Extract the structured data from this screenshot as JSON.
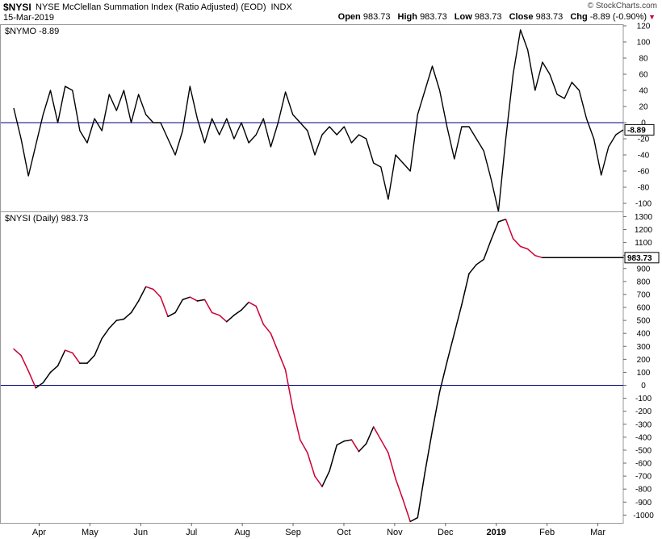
{
  "header": {
    "symbol": "$NYSI",
    "description": "NYSE McClellan Summation Index (Ratio Adjusted) (EOD)",
    "exchange": "INDX",
    "date": "15-Mar-2019",
    "credit": "© StockCharts.com",
    "open_label": "Open",
    "open": "983.73",
    "high_label": "High",
    "high": "983.73",
    "low_label": "Low",
    "low": "983.73",
    "close_label": "Close",
    "close": "983.73",
    "chg_label": "Chg",
    "chg": "-8.89 (-0.90%)",
    "chg_arrow": "▼"
  },
  "colors": {
    "line": "#000000",
    "down": "#cc0033",
    "zero_line": "#000080",
    "grid": "#cccccc"
  },
  "chart_data": [
    {
      "type": "line",
      "title": "$NYMO -8.89",
      "last_value_label": "-8.89",
      "ylim": [
        -110,
        122
      ],
      "yticks": [
        120,
        100,
        80,
        60,
        40,
        20,
        0,
        -20,
        -40,
        -60,
        -80,
        -100
      ],
      "ytick_labels": [
        "120",
        "100",
        "80",
        "60",
        "40",
        "20",
        "0",
        "-20",
        "-40",
        "-60",
        "-80",
        "-100"
      ],
      "reference_line": 0,
      "xtick_labels": [
        "Apr",
        "May",
        "Jun",
        "Jul",
        "Aug",
        "Sep",
        "Oct",
        "Nov",
        "Dec",
        "2019",
        "Feb",
        "Mar"
      ],
      "x": [
        0,
        3,
        6,
        9,
        12,
        15,
        18,
        21,
        24,
        27,
        30,
        33,
        36,
        39,
        42,
        45,
        48,
        51,
        54,
        57,
        60,
        63,
        66,
        69,
        72,
        75,
        78,
        81,
        84,
        87,
        90,
        93,
        96,
        99,
        102,
        105,
        108,
        111,
        114,
        117,
        120,
        123,
        126,
        129,
        132,
        135,
        138,
        141,
        144,
        147,
        150,
        153,
        156,
        159,
        162,
        165,
        168,
        171,
        174,
        177,
        180,
        183,
        186,
        189,
        192,
        195,
        198,
        201,
        204,
        207,
        210,
        213,
        216,
        219,
        222,
        225,
        228,
        231,
        234,
        237,
        240,
        243,
        246,
        249
      ],
      "values": [
        18,
        -20,
        -66,
        -28,
        10,
        40,
        0,
        45,
        40,
        -10,
        -25,
        5,
        -10,
        35,
        15,
        40,
        0,
        35,
        10,
        0,
        0,
        -20,
        -40,
        -10,
        45,
        5,
        -25,
        5,
        -15,
        5,
        -20,
        0,
        -25,
        -15,
        5,
        -30,
        0,
        38,
        10,
        0,
        -10,
        -40,
        -15,
        -5,
        -15,
        -5,
        -25,
        -15,
        -20,
        -50,
        -55,
        -95,
        -40,
        -50,
        -60,
        10,
        40,
        70,
        40,
        -5,
        -45,
        -5,
        -5,
        -20,
        -35,
        -70,
        -110,
        -20,
        60,
        115,
        90,
        40,
        75,
        60,
        35,
        30,
        50,
        40,
        5,
        -20,
        -65,
        -30,
        -15,
        -8.89
      ]
    },
    {
      "type": "line",
      "title": "$NYSI (Daily) 983.73",
      "last_value_label": "983.73",
      "ylim": [
        -1060,
        1340
      ],
      "yticks": [
        1300,
        1200,
        1100,
        1000,
        900,
        800,
        700,
        600,
        500,
        400,
        300,
        200,
        100,
        0,
        -100,
        -200,
        -300,
        -400,
        -500,
        -600,
        -700,
        -800,
        -900,
        -1000
      ],
      "ytick_labels": [
        "1300",
        "1200",
        "1100",
        "1000",
        "900",
        "800",
        "700",
        "600",
        "500",
        "400",
        "300",
        "200",
        "100",
        "0",
        "-100",
        "-200",
        "-300",
        "-400",
        "-500",
        "-600",
        "-700",
        "-800",
        "-900",
        "-1000"
      ],
      "reference_line": 0,
      "xtick_labels": [
        "Apr",
        "May",
        "Jun",
        "Jul",
        "Aug",
        "Sep",
        "Oct",
        "Nov",
        "Dec",
        "2019",
        "Feb",
        "Mar"
      ],
      "x": [
        0,
        3,
        6,
        9,
        12,
        15,
        18,
        21,
        24,
        27,
        30,
        33,
        36,
        39,
        42,
        45,
        48,
        51,
        54,
        57,
        60,
        63,
        66,
        69,
        72,
        75,
        78,
        81,
        84,
        87,
        90,
        93,
        96,
        99,
        102,
        105,
        108,
        111,
        114,
        117,
        120,
        123,
        126,
        129,
        132,
        135,
        138,
        141,
        144,
        147,
        150,
        153,
        156,
        159,
        162,
        165,
        168,
        171,
        174,
        177,
        180,
        183,
        186,
        189,
        192,
        195,
        198,
        201,
        204,
        207,
        210,
        213,
        216,
        219,
        222,
        225,
        228,
        231,
        234,
        237,
        240,
        243,
        246,
        249
      ],
      "values": [
        280,
        230,
        110,
        -20,
        20,
        100,
        150,
        270,
        250,
        170,
        170,
        230,
        360,
        440,
        500,
        510,
        560,
        650,
        760,
        740,
        680,
        530,
        560,
        660,
        680,
        650,
        660,
        560,
        540,
        490,
        540,
        580,
        640,
        610,
        470,
        400,
        260,
        120,
        -180,
        -420,
        -520,
        -700,
        -780,
        -660,
        -460,
        -430,
        -420,
        -510,
        -450,
        -320,
        -420,
        -520,
        -720,
        -880,
        -1050,
        -1020,
        -670,
        -350,
        -50,
        180,
        400,
        620,
        860,
        930,
        970,
        1120,
        1260,
        1280,
        1130,
        1070,
        1050,
        1000,
        983.73,
        983.73,
        983.73,
        983.73,
        983.73,
        983.73,
        983.73,
        983.73,
        983.73,
        983.73,
        983.73,
        983.73
      ],
      "up_color": "#000000",
      "down_color": "#cc0033"
    }
  ]
}
